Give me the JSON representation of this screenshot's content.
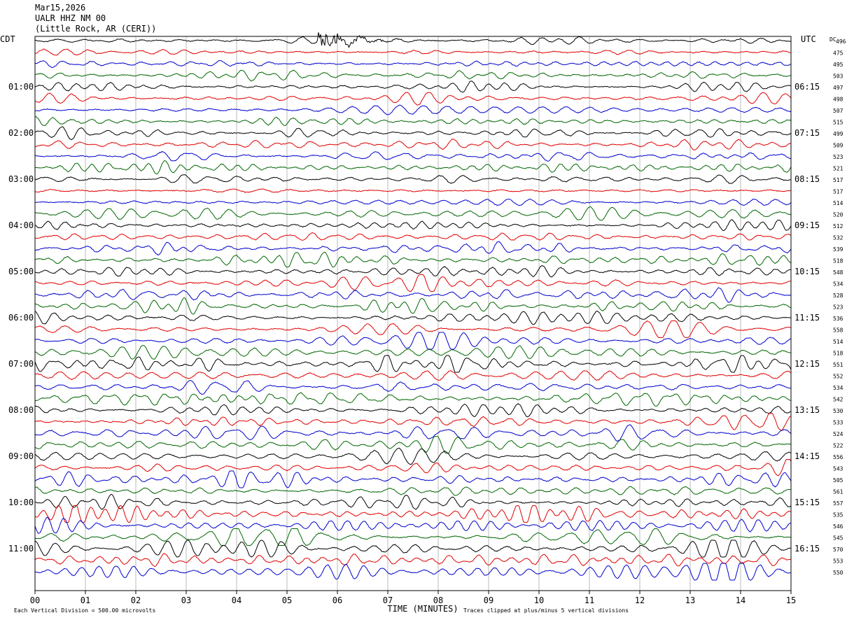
{
  "header": {
    "date": "Mar15,2026",
    "station": "UALR HHZ NM 00",
    "location": "(Little Rock, AR (CERI))"
  },
  "left_zone_label": "CDT",
  "right_zone_label": "UTC",
  "dc_label": "DC",
  "chart_data": {
    "type": "helicorder",
    "traces_per_hour": 4,
    "minutes_per_line": 15,
    "trace_colors": [
      "#000000",
      "#e00000",
      "#0000cc",
      "#006600"
    ],
    "left_hour_labels": [
      "01:00",
      "02:00",
      "03:00",
      "04:00",
      "05:00",
      "06:00",
      "07:00",
      "08:00",
      "09:00",
      "10:00",
      "11:00"
    ],
    "right_hour_labels": [
      "06:15",
      "07:15",
      "08:15",
      "09:15",
      "10:15",
      "11:15",
      "12:15",
      "13:15",
      "14:15",
      "15:15",
      "16:15"
    ],
    "dc_offsets": [
      496,
      475,
      495,
      503,
      497,
      498,
      507,
      515,
      499,
      509,
      523,
      521,
      517,
      517,
      514,
      520,
      512,
      532,
      539,
      518,
      548,
      534,
      528,
      523,
      536,
      558,
      514,
      518,
      551,
      552,
      534,
      542,
      530,
      533,
      524,
      522,
      556,
      543,
      505,
      561,
      557,
      535,
      546,
      545,
      570,
      553,
      550
    ],
    "x_ticks": [
      "00",
      "01",
      "02",
      "03",
      "04",
      "05",
      "06",
      "07",
      "08",
      "09",
      "10",
      "11",
      "12",
      "13",
      "14",
      "15"
    ],
    "xlabel": "TIME (MINUTES)",
    "xlim": [
      0,
      15
    ],
    "grid": true,
    "event": {
      "line": 0,
      "start_minute": 5.6,
      "end_minute": 7.3
    }
  },
  "footer": {
    "scale_note": "Each Vertical Division =  500.00 microvolts",
    "clip_note": "Traces clipped at plus/minus 5 vertical divisions"
  }
}
